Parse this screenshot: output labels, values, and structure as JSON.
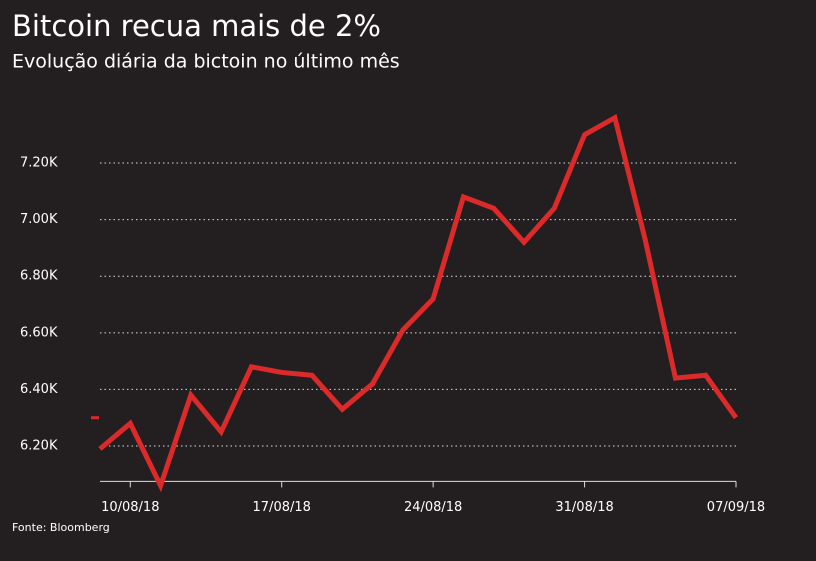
{
  "chart_data": {
    "type": "line",
    "title": "Bitcoin recua mais de 2%",
    "subtitle": "Evolução diária da bictoin no último mês",
    "source": "Fonte: Bloomberg",
    "categories": [
      null,
      "10/08/18",
      null,
      null,
      null,
      null,
      "17/08/18",
      null,
      null,
      null,
      null,
      "24/08/18",
      null,
      null,
      null,
      null,
      "31/08/18",
      null,
      null,
      null,
      null,
      "07/09/18"
    ],
    "series": [
      {
        "name": "Bitcoin",
        "color": "#dc2a2a",
        "values": [
          6.19,
          6.28,
          6.06,
          6.38,
          6.25,
          6.48,
          6.46,
          6.45,
          6.33,
          6.42,
          6.61,
          6.72,
          7.08,
          7.04,
          6.92,
          7.04,
          7.3,
          7.36,
          6.93,
          6.44,
          6.45,
          6.3
        ]
      }
    ],
    "ylim": [
      6.075,
      7.4
    ],
    "yticks": [
      {
        "value": 6.2,
        "label": "6.20K"
      },
      {
        "value": 6.4,
        "label": "6.40K"
      },
      {
        "value": 6.6,
        "label": "6.60K"
      },
      {
        "value": 6.8,
        "label": "6.80K"
      },
      {
        "value": 7.0,
        "label": "7.00K"
      },
      {
        "value": 7.2,
        "label": "7.20K"
      }
    ],
    "grid": true
  }
}
